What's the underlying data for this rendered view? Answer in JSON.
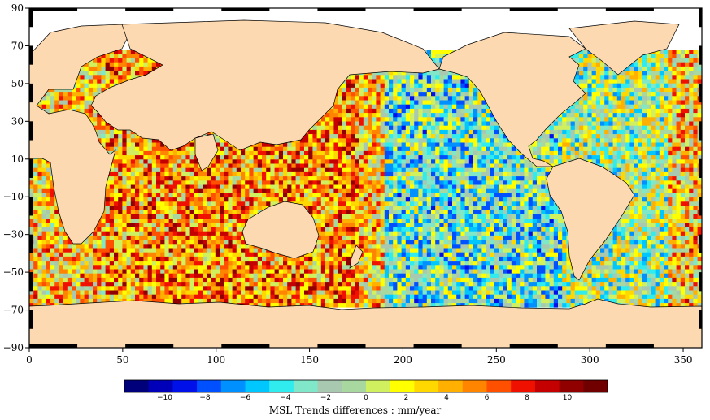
{
  "map": {
    "x_ticks": [
      "0",
      "50",
      "100",
      "150",
      "200",
      "250",
      "300",
      "350"
    ],
    "y_ticks": [
      "90",
      "70",
      "50",
      "30",
      "10",
      "−10",
      "−30",
      "−50",
      "−70",
      "−90"
    ],
    "x_tick_values": [
      0,
      50,
      100,
      150,
      200,
      250,
      300,
      350
    ],
    "y_tick_values": [
      90,
      70,
      50,
      30,
      10,
      -10,
      -30,
      -50,
      -70,
      -90
    ],
    "lon_range": [
      0,
      360
    ],
    "lat_range": [
      -90,
      90
    ],
    "land_color": "#fcd9b0",
    "coast_color": "#000000"
  },
  "colorbar": {
    "caption": "MSL Trends differences : mm/year",
    "range": [
      -12,
      12
    ],
    "labels": [
      "−10",
      "−8",
      "−6",
      "−4",
      "−2",
      "0",
      "2",
      "4",
      "6",
      "8",
      "10"
    ],
    "label_values": [
      -10,
      -8,
      -6,
      -4,
      -2,
      0,
      2,
      4,
      6,
      8,
      10
    ],
    "colors": [
      "#00007a",
      "#0000b8",
      "#0010e8",
      "#0050ff",
      "#0090ff",
      "#00c8ff",
      "#30ecee",
      "#80e8c8",
      "#a8c8b0",
      "#a8d8a0",
      "#d0f060",
      "#ffff00",
      "#ffd800",
      "#ffb000",
      "#ff8400",
      "#ff5000",
      "#f01000",
      "#c40000",
      "#900000",
      "#700000"
    ]
  }
}
